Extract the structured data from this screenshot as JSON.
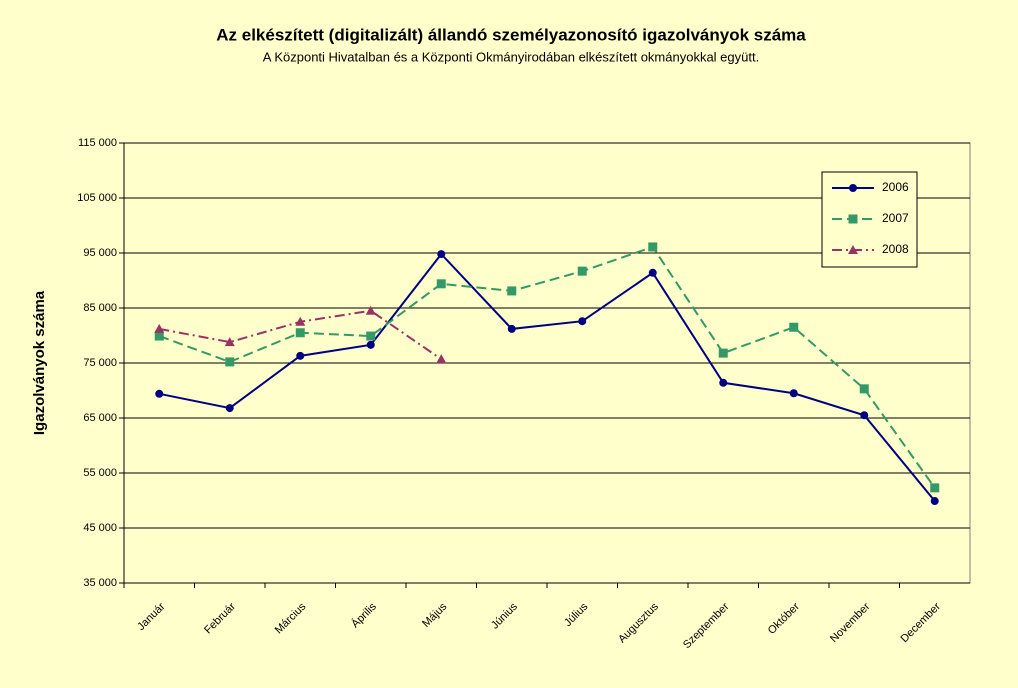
{
  "chart_data": {
    "type": "line",
    "title": "Az elkészített (digitalizált) állandó személyazonosító igazolványok száma",
    "subtitle": "A Központi Hivatalban és a Központi Okmányirodában elkészített okmányokkal együtt.",
    "y_label": "Igazolványok száma",
    "categories": [
      "Január",
      "Február",
      "Március",
      "Április",
      "Május",
      "Június",
      "Július",
      "Augusztus",
      "Szeptember",
      "Október",
      "November",
      "December"
    ],
    "series": [
      {
        "name": "2006",
        "color": "#000080",
        "marker": "circle",
        "dash": "none",
        "values": [
          69400,
          66800,
          76300,
          78300,
          94800,
          81200,
          82600,
          91400,
          71400,
          69500,
          65500,
          49900
        ]
      },
      {
        "name": "2007",
        "color": "#339966",
        "marker": "square",
        "dash": "10 5",
        "values": [
          79900,
          75200,
          80500,
          79900,
          89400,
          88100,
          91700,
          96100,
          76800,
          81500,
          70300,
          52300
        ]
      },
      {
        "name": "2008",
        "color": "#993366",
        "marker": "triangle",
        "dash": "10 4 2 4",
        "values": [
          81200,
          78800,
          82500,
          84500,
          75700,
          null,
          null,
          null,
          null,
          null,
          null,
          null
        ]
      }
    ],
    "ylim": [
      35000,
      115000
    ],
    "yticks": [
      {
        "value": 35000,
        "label": "35 000"
      },
      {
        "value": 45000,
        "label": "45 000"
      },
      {
        "value": 55000,
        "label": "55 000"
      },
      {
        "value": 65000,
        "label": "65 000"
      },
      {
        "value": 75000,
        "label": "75 000"
      },
      {
        "value": 85000,
        "label": "85 000"
      },
      {
        "value": 95000,
        "label": "95 000"
      },
      {
        "value": 105000,
        "label": "105 000"
      },
      {
        "value": 115000,
        "label": "115 000"
      }
    ],
    "grid": true,
    "legend": "upper right"
  }
}
